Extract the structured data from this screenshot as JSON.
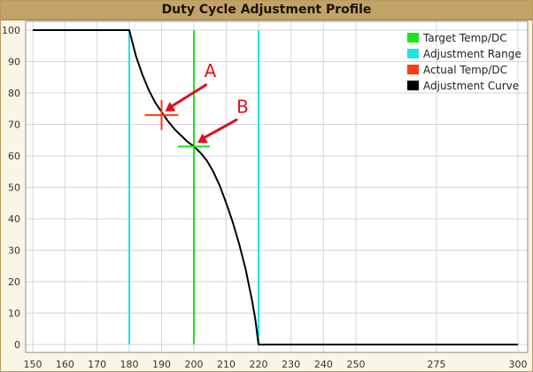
{
  "window": {
    "title": "Duty Cycle Adjustment Profile"
  },
  "chart_data": {
    "type": "line",
    "title": "Duty Cycle Adjustment Profile",
    "xlabel": "",
    "ylabel": "",
    "xlim": [
      150,
      300
    ],
    "ylim": [
      0,
      100
    ],
    "x_ticks": [
      150,
      160,
      170,
      180,
      190,
      200,
      210,
      220,
      230,
      240,
      250,
      275,
      300
    ],
    "y_ticks": [
      0,
      10,
      20,
      30,
      40,
      50,
      60,
      70,
      80,
      90,
      100
    ],
    "x_axis_note": "non-linear scale: 150-250 in steps of 10, then 275 and 300",
    "grid": true,
    "legend_position": "top-right",
    "colors": {
      "target": "#19e619",
      "range": "#1de5e5",
      "actual": "#ff3b0f",
      "curve": "#000000",
      "grid": "#cfd6e0",
      "annotation": "#e0101e"
    },
    "series": [
      {
        "name": "Adjustment Curve",
        "x": [
          150,
          180,
          181,
          182,
          184,
          186,
          188,
          190,
          192,
          194,
          196,
          198,
          200,
          202,
          204,
          206,
          208,
          210,
          212,
          214,
          216,
          218,
          219,
          220,
          230,
          250,
          275,
          300
        ],
        "y": [
          100,
          100,
          96,
          92,
          86,
          81,
          77,
          74,
          71,
          68.5,
          66.5,
          64.5,
          63,
          61,
          58.5,
          55,
          50.5,
          45,
          39,
          32,
          24,
          14,
          8,
          0,
          0,
          0,
          0,
          0
        ]
      },
      {
        "name": "Target Temp/DC",
        "x": [
          200
        ],
        "y": [
          63
        ]
      },
      {
        "name": "Adjustment Range",
        "x": [
          180,
          220
        ]
      },
      {
        "name": "Actual Temp/DC",
        "x": [
          190
        ],
        "y": [
          73
        ]
      }
    ],
    "annotations": [
      {
        "label": "A",
        "x": 190,
        "y": 73
      },
      {
        "label": "B",
        "x": 200,
        "y": 63
      }
    ]
  }
}
